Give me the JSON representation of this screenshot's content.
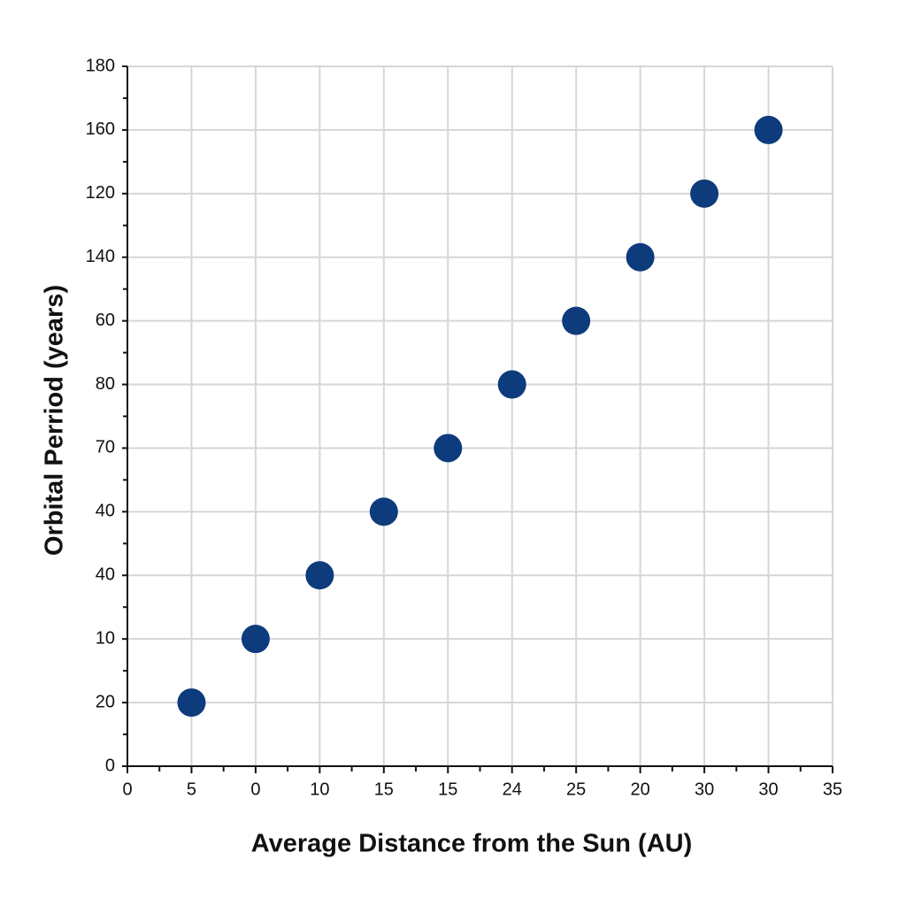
{
  "chart_data": {
    "type": "scatter",
    "x_label": "Average Distance from the Sun (AU)",
    "y_label": "Orbital Perriod (years)",
    "color": "#0d3b7c",
    "grid": true,
    "xlim": [
      0,
      11
    ],
    "ylim": [
      0,
      11
    ],
    "xticks": [
      {
        "value": 0,
        "label": "0"
      },
      {
        "value": 1,
        "label": "5"
      },
      {
        "value": 2,
        "label": "0"
      },
      {
        "value": 3,
        "label": "10"
      },
      {
        "value": 4,
        "label": "15"
      },
      {
        "value": 5,
        "label": "15"
      },
      {
        "value": 6,
        "label": "24"
      },
      {
        "value": 7,
        "label": "25"
      },
      {
        "value": 8,
        "label": "20"
      },
      {
        "value": 9,
        "label": "30"
      },
      {
        "value": 10,
        "label": "30"
      },
      {
        "value": 11,
        "label": "35"
      }
    ],
    "yticks": [
      {
        "value": 0,
        "label": "0"
      },
      {
        "value": 1,
        "label": "20"
      },
      {
        "value": 2,
        "label": "10"
      },
      {
        "value": 3,
        "label": "40"
      },
      {
        "value": 4,
        "label": "40"
      },
      {
        "value": 5,
        "label": "70"
      },
      {
        "value": 6,
        "label": "80"
      },
      {
        "value": 7,
        "label": "60"
      },
      {
        "value": 8,
        "label": "140"
      },
      {
        "value": 9,
        "label": "120"
      },
      {
        "value": 10,
        "label": "160"
      },
      {
        "value": 11,
        "label": "180"
      }
    ],
    "x": [
      1,
      2,
      3,
      4,
      5,
      6,
      7,
      8,
      9,
      10
    ],
    "values": [
      1,
      2,
      3,
      4,
      5,
      6,
      7,
      8,
      9,
      10
    ]
  }
}
